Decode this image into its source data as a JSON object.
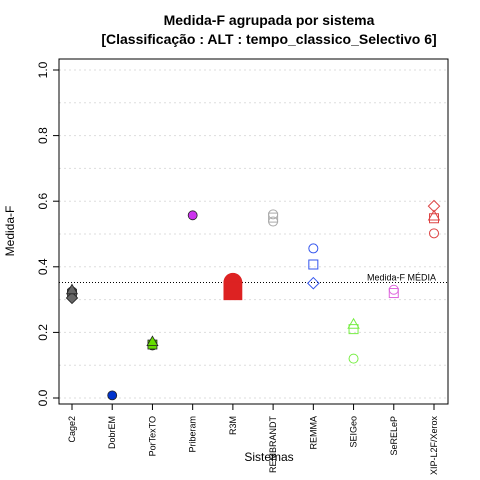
{
  "chart_data": {
    "type": "scatter",
    "title": "Medida-F agrupada por sistema",
    "subtitle": "[Classificação : ALT : tempo_classico_Selectivo 6]",
    "xlabel": "Sistemas",
    "ylabel": "Medida-F",
    "ylim": [
      0,
      1
    ],
    "yticks": [
      "0.0",
      "0.2",
      "0.4",
      "0.6",
      "0.8",
      "1.0"
    ],
    "grid": true,
    "categories": [
      "Cage2",
      "DobrEM",
      "PorTexTO",
      "Priberam",
      "R3M",
      "REMBRANDT",
      "REMMA",
      "SEIGeo",
      "SeRELeP",
      "XIP-L2F/Xerox"
    ],
    "reference_line": {
      "label": "Medida-F MÉDIA",
      "value": 0.352
    },
    "series": [
      {
        "category": "Cage2",
        "color": "#666666",
        "filled": true,
        "big": false,
        "points": [
          {
            "shape": "circle",
            "y": 0.325
          },
          {
            "shape": "square",
            "y": 0.318
          },
          {
            "shape": "diamond",
            "y": 0.305
          },
          {
            "shape": "triangle",
            "y": 0.33
          }
        ]
      },
      {
        "category": "DobrEM",
        "color": "#0033cc",
        "filled": true,
        "big": false,
        "points": [
          {
            "shape": "circle",
            "y": 0.008
          }
        ]
      },
      {
        "category": "PorTexTO",
        "color": "#66dd00",
        "filled": true,
        "big": false,
        "points": [
          {
            "shape": "circle",
            "y": 0.16
          },
          {
            "shape": "square",
            "y": 0.163
          },
          {
            "shape": "triangle",
            "y": 0.172
          }
        ]
      },
      {
        "category": "Priberam",
        "color": "#cc33ee",
        "filled": true,
        "big": false,
        "points": [
          {
            "shape": "circle",
            "y": 0.557
          }
        ]
      },
      {
        "category": "R3M",
        "color": "#dd2222",
        "filled": true,
        "big": true,
        "points": [
          {
            "shape": "circle",
            "y": 0.353
          },
          {
            "shape": "square",
            "y": 0.327
          }
        ]
      },
      {
        "category": "REMBRANDT",
        "color": "#aaaaaa",
        "filled": false,
        "big": false,
        "points": [
          {
            "shape": "circle",
            "y": 0.538
          },
          {
            "shape": "square",
            "y": 0.55
          },
          {
            "shape": "circle",
            "y": 0.56
          }
        ]
      },
      {
        "category": "REMMA",
        "color": "#3355ee",
        "filled": false,
        "big": false,
        "points": [
          {
            "shape": "circle",
            "y": 0.456
          },
          {
            "shape": "square",
            "y": 0.407
          },
          {
            "shape": "diamond",
            "y": 0.35
          }
        ]
      },
      {
        "category": "SEIGeo",
        "color": "#77ee44",
        "filled": false,
        "big": false,
        "points": [
          {
            "shape": "triangle",
            "y": 0.225
          },
          {
            "shape": "square",
            "y": 0.21
          },
          {
            "shape": "circle",
            "y": 0.12
          }
        ]
      },
      {
        "category": "SeRELeP",
        "color": "#dd66dd",
        "filled": false,
        "big": false,
        "points": [
          {
            "shape": "circle",
            "y": 0.33
          },
          {
            "shape": "square",
            "y": 0.32
          }
        ]
      },
      {
        "category": "XIP-L2F/Xerox",
        "color": "#dd4444",
        "filled": false,
        "big": false,
        "points": [
          {
            "shape": "diamond",
            "y": 0.585
          },
          {
            "shape": "triangle",
            "y": 0.555
          },
          {
            "shape": "square",
            "y": 0.548
          },
          {
            "shape": "circle",
            "y": 0.502
          }
        ]
      }
    ]
  }
}
